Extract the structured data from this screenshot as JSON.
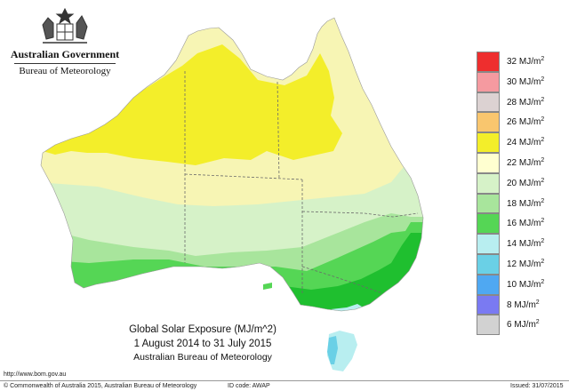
{
  "header": {
    "org_line1": "Australian Government",
    "org_line2": "Bureau of Meteorology",
    "crest_icon": "coat-of-arms-icon"
  },
  "map": {
    "title": "Global Solar Exposure (MJ/m^2)",
    "period": "1 August 2014 to 31 July 2015",
    "source": "Australian Bureau of Meteorology",
    "colors": {
      "ocean": "#ffffff",
      "band_24_26": "#f3ee2a",
      "band_22_24": "#f7f5b4",
      "band_20_22": "#ffffd0",
      "band_18_20": "#d6f2c8",
      "band_16_18": "#a8e59c",
      "band_14_16": "#55d655",
      "band_12_14": "#1fbf2f",
      "band_10_12": "#b8eef0",
      "band_8_10": "#6ad0e6",
      "border": "#6a6a6a"
    }
  },
  "legend": {
    "unit": "MJ/m",
    "unit_exp": "2",
    "items": [
      {
        "value": "32",
        "color": "#ee2e2e"
      },
      {
        "value": "30",
        "color": "#f59aa0"
      },
      {
        "value": "28",
        "color": "#dcd2d2"
      },
      {
        "value": "26",
        "color": "#f9c66e"
      },
      {
        "value": "24",
        "color": "#f3ee2a"
      },
      {
        "value": "22",
        "color": "#ffffd0"
      },
      {
        "value": "20",
        "color": "#d6f2c8"
      },
      {
        "value": "18",
        "color": "#a8e59c"
      },
      {
        "value": "16",
        "color": "#55d655"
      },
      {
        "value": "14",
        "color": "#b8eef0"
      },
      {
        "value": "12",
        "color": "#6ad0e6"
      },
      {
        "value": "10",
        "color": "#4fa8f2"
      },
      {
        "value": "8",
        "color": "#7a7af2"
      },
      {
        "value": "6",
        "color": "#d2d2d2"
      }
    ]
  },
  "footer": {
    "url": "http://www.bom.gov.au",
    "copyright": "© Commonwealth of Australia 2015, Australian Bureau of Meteorology",
    "id_code": "ID code: AWAP",
    "issued": "Issued: 31/07/2015"
  }
}
